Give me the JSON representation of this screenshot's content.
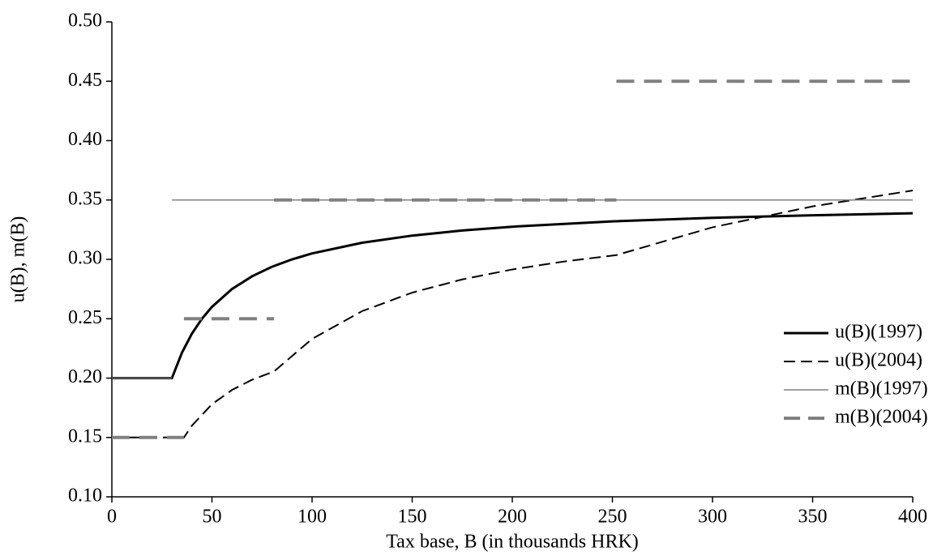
{
  "chart_data": {
    "type": "line",
    "xlabel": "Tax base, B (in thousands HRK)",
    "ylabel": "u(B), m(B)",
    "xlim": [
      0,
      400
    ],
    "xticks": [
      0,
      50,
      100,
      150,
      200,
      250,
      300,
      350,
      400
    ],
    "ylim": [
      0.1,
      0.5
    ],
    "yticks": [
      {
        "value": 0.1,
        "label": "0.10"
      },
      {
        "value": 0.15,
        "label": "0.15"
      },
      {
        "value": 0.2,
        "label": "0.20"
      },
      {
        "value": 0.25,
        "label": "0.25"
      },
      {
        "value": 0.3,
        "label": "0.30"
      },
      {
        "value": 0.35,
        "label": "0.35"
      },
      {
        "value": 0.4,
        "label": "0.40"
      },
      {
        "value": 0.45,
        "label": "0.45"
      },
      {
        "value": 0.5,
        "label": "0.50"
      }
    ],
    "legend": "lower right",
    "series": [
      {
        "name": "u(B)(1997)",
        "color": "#000000",
        "width": 3,
        "dash": false,
        "x": [
          0,
          30,
          35,
          40,
          45,
          50,
          60,
          70,
          80,
          90,
          100,
          125,
          150,
          175,
          200,
          250,
          300,
          350,
          400
        ],
        "values": [
          0.2,
          0.2,
          0.2214,
          0.2375,
          0.25,
          0.26,
          0.275,
          0.2857,
          0.2938,
          0.3,
          0.305,
          0.314,
          0.32,
          0.3243,
          0.3275,
          0.332,
          0.335,
          0.3371,
          0.3388
        ]
      },
      {
        "name": "u(B)(2004)",
        "color": "#000000",
        "width": 2,
        "dash": true,
        "x": [
          0,
          36,
          40,
          50,
          60,
          70,
          81,
          100,
          125,
          150,
          175,
          200,
          225,
          252,
          300,
          350,
          400
        ],
        "values": [
          0.15,
          0.15,
          0.16,
          0.178,
          0.19,
          0.1986,
          0.2056,
          0.233,
          0.2564,
          0.272,
          0.2831,
          0.2915,
          0.298,
          0.3036,
          0.327,
          0.3446,
          0.358
        ]
      },
      {
        "name": "m(B)(1997)",
        "color": "#808080",
        "width": 1.5,
        "dash": false,
        "x": [
          0,
          30,
          30,
          30,
          400
        ],
        "values": [
          0.2,
          0.2,
          null,
          0.35,
          0.35
        ]
      },
      {
        "name": "m(B)(2004)",
        "color": "#808080",
        "width": 4,
        "dash": true,
        "x": [
          0,
          36,
          36,
          36,
          81,
          81,
          81,
          252,
          252,
          252,
          400
        ],
        "values": [
          0.15,
          0.15,
          null,
          0.25,
          0.25,
          null,
          0.35,
          0.35,
          null,
          0.45,
          0.45
        ]
      }
    ]
  }
}
